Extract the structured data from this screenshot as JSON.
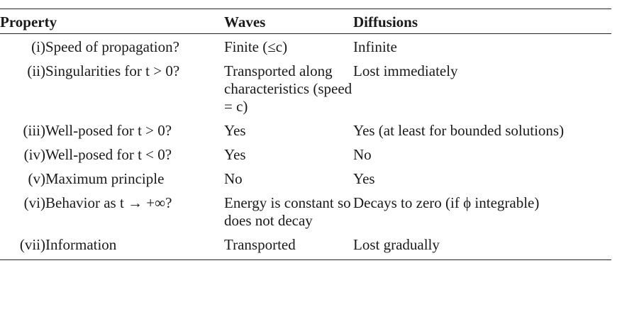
{
  "header": {
    "property": "Property",
    "waves": "Waves",
    "diffusions": "Diffusions"
  },
  "rows": [
    {
      "num": "(i)",
      "property": "Speed of propagation?",
      "waves": "Finite (≤c)",
      "diffusions": "Infinite"
    },
    {
      "num": "(ii)",
      "property": "Singularities for t > 0?",
      "waves": "Transported along characteristics (speed = c)",
      "diffusions": "Lost immediately"
    },
    {
      "num": "(iii)",
      "property": "Well-posed for t > 0?",
      "waves": "Yes",
      "diffusions": "Yes (at least for bounded solutions)"
    },
    {
      "num": "(iv)",
      "property": "Well-posed for t < 0?",
      "waves": "Yes",
      "diffusions": "No"
    },
    {
      "num": "(v)",
      "property": "Maximum principle",
      "waves": "No",
      "diffusions": "Yes"
    },
    {
      "num": "(vi)",
      "property": "Behavior as t → +∞?",
      "waves": "Energy is constant so does not decay",
      "diffusions": "Decays to zero (if ϕ integrable)"
    },
    {
      "num": "(vii)",
      "property": "Information",
      "waves": "Transported",
      "diffusions": "Lost gradually"
    }
  ]
}
